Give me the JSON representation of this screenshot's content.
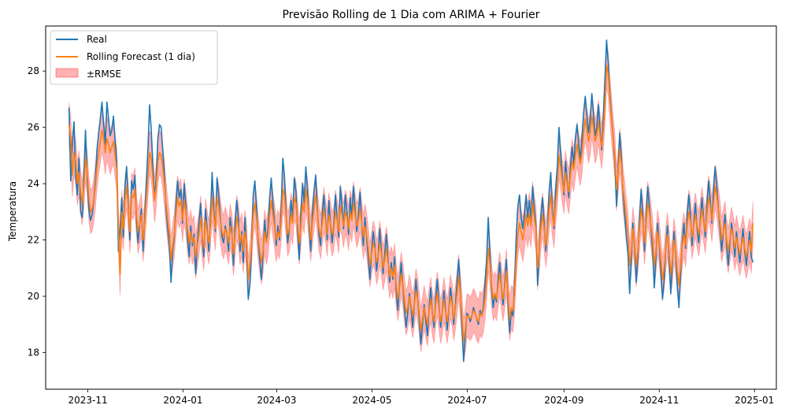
{
  "chart_data": {
    "type": "line",
    "title": "Previsão Rolling de 1 Dia com ARIMA + Fourier",
    "xlabel": "",
    "ylabel": "Temperatura",
    "x_tick_labels": [
      "2023-11",
      "2024-01",
      "2024-03",
      "2024-05",
      "2024-07",
      "2024-09",
      "2024-11",
      "2025-01"
    ],
    "x_tick_dates": [
      "2023-11-01",
      "2024-01-01",
      "2024-03-01",
      "2024-05-01",
      "2024-07-01",
      "2024-09-01",
      "2024-11-01",
      "2025-01-01"
    ],
    "y_ticks": [
      18,
      20,
      22,
      24,
      26,
      28
    ],
    "ylim": [
      16.7,
      29.6
    ],
    "xlim": [
      "2023-10-05",
      "2025-01-15"
    ],
    "x_start": "2023-10-20",
    "x_end": "2024-12-31",
    "rmse": 0.78,
    "grid": false,
    "legend_position": "top-left",
    "legend": [
      "Real",
      "Rolling Forecast (1 dia)",
      "±RMSE"
    ],
    "series": [
      {
        "name": "Real",
        "color": "#1f77b4",
        "values": [
          26.7,
          24.1,
          25.5,
          26.2,
          24.3,
          23.6,
          24.9,
          23.0,
          22.8,
          24.3,
          25.9,
          24.2,
          23.1,
          22.7,
          22.9,
          23.4,
          24.1,
          25.2,
          25.8,
          26.3,
          26.9,
          26.1,
          25.4,
          26.9,
          26.3,
          25.7,
          25.9,
          26.4,
          25.5,
          24.8,
          21.6,
          22.4,
          23.5,
          22.1,
          23.9,
          24.6,
          23.3,
          22.0,
          24.1,
          23.8,
          24.3,
          22.7,
          21.9,
          22.6,
          23.1,
          21.6,
          22.8,
          24.1,
          25.3,
          26.8,
          25.9,
          24.6,
          23.5,
          24.2,
          25.6,
          26.1,
          26.0,
          25.2,
          24.3,
          23.1,
          22.4,
          21.8,
          20.5,
          21.6,
          22.1,
          23.2,
          24.1,
          23.5,
          23.8,
          22.6,
          24.0,
          23.2,
          22.1,
          21.4,
          22.5,
          21.8,
          22.2,
          20.8,
          21.9,
          22.6,
          23.3,
          22.0,
          21.4,
          23.1,
          22.4,
          21.6,
          22.8,
          24.4,
          23.1,
          22.3,
          24.2,
          23.6,
          22.8,
          22.1,
          21.9,
          22.5,
          22.2,
          21.6,
          22.8,
          22.3,
          21.1,
          22.6,
          23.4,
          22.7,
          21.6,
          22.3,
          21.2,
          22.8,
          21.6,
          19.9,
          20.4,
          21.8,
          23.6,
          24.1,
          23.2,
          22.0,
          21.3,
          20.6,
          21.5,
          22.7,
          21.9,
          22.4,
          23.5,
          24.2,
          23.3,
          22.6,
          21.8,
          22.5,
          22.0,
          23.1,
          24.9,
          24.3,
          23.0,
          21.9,
          22.4,
          23.4,
          22.8,
          24.2,
          23.7,
          22.4,
          21.3,
          22.9,
          24.0,
          23.3,
          24.6,
          23.8,
          22.5,
          21.6,
          22.9,
          23.7,
          24.3,
          23.1,
          22.2,
          21.8,
          22.9,
          23.6,
          22.8,
          22.0,
          23.4,
          22.6,
          21.9,
          22.5,
          23.6,
          22.8,
          22.1,
          23.9,
          23.2,
          22.4,
          23.6,
          23.0,
          22.2,
          23.5,
          22.8,
          23.9,
          23.1,
          22.3,
          22.9,
          23.7,
          22.6,
          21.8,
          22.8,
          22.1,
          21.4,
          20.6,
          21.6,
          22.3,
          21.8,
          20.9,
          21.4,
          22.4,
          21.6,
          20.8,
          21.5,
          22.2,
          21.3,
          20.5,
          21.2,
          20.6,
          21.4,
          20.2,
          19.5,
          20.4,
          21.2,
          20.4,
          19.6,
          18.9,
          19.4,
          20.1,
          19.6,
          18.9,
          19.7,
          20.6,
          19.9,
          19.2,
          18.3,
          19.0,
          19.7,
          19.1,
          18.6,
          19.6,
          20.3,
          19.4,
          18.9,
          19.9,
          20.6,
          19.7,
          18.9,
          19.4,
          20.2,
          19.6,
          18.8,
          19.5,
          20.3,
          19.8,
          19.0,
          19.7,
          20.5,
          21.3,
          20.2,
          18.9,
          17.7,
          18.6,
          19.4,
          19.3,
          19.1,
          19.3,
          19.6,
          19.4,
          19.2,
          19.0,
          19.5,
          19.3,
          19.6,
          20.4,
          21.3,
          22.8,
          21.6,
          20.3,
          19.6,
          20.1,
          19.8,
          20.6,
          21.2,
          20.3,
          19.7,
          20.4,
          21.3,
          19.8,
          18.7,
          19.5,
          19.3,
          20.4,
          22.1,
          23.2,
          23.6,
          22.8,
          22.4,
          22.9,
          23.6,
          22.8,
          23.4,
          22.7,
          23.9,
          23.1,
          22.5,
          20.4,
          21.6,
          22.8,
          23.5,
          22.6,
          21.6,
          22.4,
          23.7,
          24.4,
          23.1,
          22.4,
          23.8,
          24.6,
          26.0,
          25.1,
          24.3,
          23.6,
          24.8,
          24.1,
          23.5,
          24.6,
          25.3,
          24.7,
          25.6,
          26.1,
          25.4,
          24.8,
          25.6,
          26.5,
          27.1,
          26.4,
          25.8,
          26.3,
          27.2,
          26.5,
          25.7,
          26.0,
          26.8,
          25.9,
          25.2,
          26.4,
          27.8,
          29.1,
          28.3,
          27.2,
          26.4,
          25.6,
          24.8,
          23.2,
          24.6,
          25.8,
          24.9,
          23.7,
          22.9,
          22.1,
          21.5,
          20.1,
          21.3,
          22.6,
          21.8,
          20.5,
          21.4,
          22.7,
          23.8,
          22.9,
          21.6,
          22.8,
          23.9,
          23.2,
          22.4,
          21.6,
          20.3,
          21.4,
          22.6,
          21.8,
          20.9,
          19.9,
          20.6,
          21.7,
          22.5,
          21.3,
          20.1,
          21.2,
          22.3,
          21.5,
          20.4,
          19.6,
          20.8,
          21.9,
          22.6,
          21.7,
          22.8,
          23.6,
          22.9,
          21.8,
          22.6,
          23.3,
          22.4,
          21.9,
          22.7,
          23.5,
          22.8,
          22.1,
          23.2,
          24.1,
          23.4,
          22.6,
          23.7,
          24.6,
          23.9,
          23.1,
          22.4,
          21.6,
          22.3,
          22.9,
          21.8,
          21.1,
          21.9,
          22.6,
          22.1,
          21.4,
          22.3,
          21.7,
          21.2,
          21.8,
          22.4,
          21.6,
          21.1,
          21.7,
          22.3,
          21.4,
          21.2
        ]
      },
      {
        "name": "Rolling Forecast (1 dia)",
        "color": "#ff7f0e",
        "values": [
          26.1,
          25.6,
          24.3,
          25.1,
          24.8,
          24.0,
          24.4,
          23.7,
          23.3,
          23.9,
          24.9,
          24.4,
          23.5,
          23.0,
          23.1,
          23.4,
          23.9,
          24.6,
          25.1,
          25.5,
          25.9,
          25.6,
          25.1,
          25.6,
          25.4,
          25.1,
          25.3,
          25.5,
          25.0,
          24.5,
          22.4,
          20.8,
          23.0,
          22.4,
          23.4,
          23.9,
          23.2,
          22.3,
          23.6,
          23.5,
          23.8,
          22.9,
          22.3,
          22.6,
          22.9,
          22.0,
          22.6,
          23.5,
          24.3,
          25.1,
          24.9,
          24.2,
          23.4,
          23.9,
          24.8,
          25.1,
          25.0,
          24.6,
          24.0,
          23.3,
          22.7,
          22.2,
          21.3,
          21.8,
          22.2,
          22.9,
          23.5,
          23.2,
          23.4,
          22.7,
          23.4,
          23.0,
          22.4,
          21.9,
          22.3,
          21.9,
          22.1,
          21.4,
          21.8,
          22.2,
          22.8,
          22.1,
          21.7,
          22.7,
          22.3,
          21.9,
          22.5,
          23.5,
          22.9,
          22.4,
          23.5,
          23.2,
          22.7,
          22.3,
          22.1,
          22.4,
          22.2,
          21.9,
          22.5,
          22.2,
          21.5,
          22.2,
          22.8,
          22.5,
          21.9,
          22.2,
          21.6,
          22.3,
          21.8,
          20.6,
          21.1,
          21.8,
          22.9,
          23.3,
          22.8,
          22.1,
          21.6,
          21.2,
          21.6,
          22.3,
          21.9,
          22.2,
          22.9,
          23.4,
          22.9,
          22.5,
          22.0,
          22.3,
          22.1,
          22.7,
          23.8,
          23.6,
          22.9,
          22.2,
          22.4,
          22.9,
          22.6,
          23.5,
          23.3,
          22.6,
          21.9,
          22.5,
          23.3,
          23.0,
          23.8,
          23.4,
          22.7,
          22.0,
          22.6,
          23.1,
          23.6,
          23.0,
          22.4,
          22.1,
          22.6,
          23.1,
          22.7,
          22.2,
          22.9,
          22.6,
          22.2,
          22.4,
          23.0,
          22.7,
          22.3,
          23.2,
          22.9,
          22.5,
          23.0,
          22.8,
          22.4,
          23.0,
          22.7,
          23.3,
          22.9,
          22.5,
          22.7,
          23.1,
          22.6,
          22.1,
          22.5,
          22.2,
          21.7,
          21.1,
          21.5,
          21.9,
          21.7,
          21.2,
          21.4,
          21.9,
          21.5,
          21.0,
          21.3,
          21.7,
          21.2,
          20.7,
          21.0,
          20.7,
          21.1,
          20.4,
          19.9,
          20.3,
          20.8,
          20.4,
          19.9,
          19.4,
          19.6,
          20.0,
          19.7,
          19.3,
          19.7,
          20.2,
          19.9,
          19.4,
          18.8,
          19.2,
          19.6,
          19.3,
          19.0,
          19.5,
          19.9,
          19.4,
          19.1,
          19.7,
          20.1,
          19.6,
          19.1,
          19.4,
          19.9,
          19.5,
          19.1,
          19.5,
          20.0,
          19.7,
          19.2,
          19.6,
          20.1,
          20.7,
          20.1,
          19.3,
          18.4,
          18.8,
          19.3,
          19.3,
          19.2,
          19.3,
          19.5,
          19.4,
          19.2,
          19.1,
          19.4,
          19.3,
          19.5,
          19.9,
          20.6,
          21.7,
          21.2,
          20.4,
          19.9,
          20.1,
          19.9,
          20.4,
          20.8,
          20.3,
          19.9,
          20.3,
          20.9,
          20.0,
          19.2,
          19.6,
          19.5,
          20.1,
          21.3,
          22.2,
          22.6,
          22.3,
          22.0,
          22.4,
          22.9,
          22.5,
          22.9,
          22.5,
          23.3,
          22.8,
          22.4,
          21.0,
          21.6,
          22.4,
          22.9,
          22.4,
          21.8,
          22.3,
          23.1,
          23.6,
          22.9,
          22.5,
          23.3,
          23.9,
          25.0,
          24.6,
          24.1,
          23.7,
          24.4,
          24.0,
          23.7,
          24.3,
          24.8,
          24.5,
          25.0,
          25.4,
          25.0,
          24.7,
          25.1,
          25.8,
          26.3,
          25.9,
          25.5,
          25.8,
          26.4,
          26.0,
          25.5,
          25.7,
          26.2,
          25.7,
          25.3,
          25.9,
          26.9,
          28.2,
          27.9,
          27.0,
          26.3,
          25.6,
          25.0,
          23.8,
          24.4,
          25.2,
          24.7,
          23.8,
          23.3,
          22.7,
          22.2,
          21.1,
          21.6,
          22.4,
          21.9,
          21.1,
          21.6,
          22.4,
          23.1,
          22.7,
          21.9,
          22.6,
          23.3,
          23.0,
          22.5,
          22.0,
          21.1,
          21.6,
          22.3,
          21.9,
          21.3,
          20.6,
          21.0,
          21.7,
          22.2,
          21.6,
          20.8,
          21.3,
          22.0,
          21.6,
          20.9,
          20.4,
          21.1,
          21.8,
          22.2,
          21.8,
          22.5,
          23.0,
          22.7,
          22.1,
          22.5,
          22.9,
          22.5,
          22.2,
          22.6,
          23.1,
          22.7,
          22.3,
          22.9,
          23.5,
          23.2,
          22.7,
          23.3,
          23.9,
          23.6,
          23.1,
          22.6,
          22.0,
          22.3,
          22.6,
          22.0,
          21.6,
          22.0,
          22.4,
          22.1,
          21.7,
          22.1,
          21.8,
          21.5,
          21.8,
          22.1,
          21.7,
          21.4,
          21.7,
          22.0,
          21.6,
          22.6
        ]
      }
    ]
  }
}
